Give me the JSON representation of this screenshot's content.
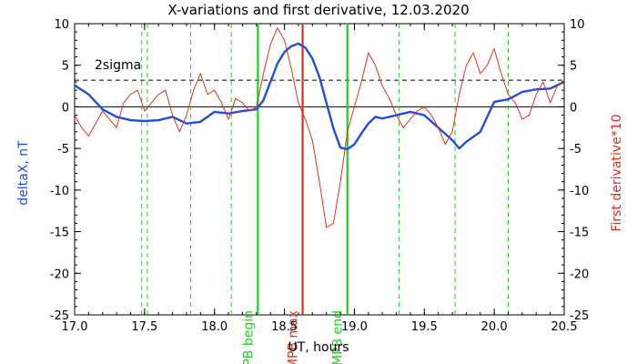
{
  "chart_data": {
    "type": "line",
    "title": "X-variations and first derivative, 12.03.2020",
    "xlabel": "UT, hours",
    "ylabel_left": "deltaX, nT",
    "ylabel_right": "First derivative*10",
    "xlim": [
      17.0,
      20.5
    ],
    "ylim_left": [
      -25,
      10
    ],
    "ylim_right": [
      -25,
      10
    ],
    "x_ticks": [
      "17.0",
      "17.5",
      "18.0",
      "18.5",
      "19.0",
      "19.5",
      "20.0",
      "20.5"
    ],
    "y_ticks_left": [
      "10",
      "5",
      "0",
      "-5",
      "-10",
      "-15",
      "-20",
      "-25"
    ],
    "y_ticks_right": [
      "10",
      "5",
      "0",
      "-5",
      "-10",
      "-15",
      "-20",
      "-25"
    ],
    "colors": {
      "deltaX": "#1f4fd8",
      "derivative": "#d8321e",
      "mpb_lines": "#22cc22",
      "mpb_max": "#d8321e"
    },
    "threshold": {
      "label": "2sigma",
      "value": 3.2,
      "style": "dashed"
    },
    "zero_line": 0,
    "vertical_markers": [
      {
        "label": "MPB begin",
        "x": 18.31,
        "color": "#22cc22",
        "style": "solid"
      },
      {
        "label": "MPB max",
        "x": 18.63,
        "color": "#d8321e",
        "style": "solid"
      },
      {
        "label": "MPB end",
        "x": 18.95,
        "color": "#22cc22",
        "style": "solid"
      }
    ],
    "dashed_verticals_x": [
      17.48,
      17.52,
      17.83,
      18.12,
      19.32,
      19.72,
      20.1
    ],
    "series": [
      {
        "name": "deltaX, nT",
        "axis": "left",
        "x": [
          17.0,
          17.1,
          17.2,
          17.3,
          17.4,
          17.5,
          17.6,
          17.7,
          17.8,
          17.9,
          18.0,
          18.1,
          18.2,
          18.3,
          18.35,
          18.4,
          18.45,
          18.5,
          18.55,
          18.6,
          18.65,
          18.7,
          18.75,
          18.8,
          18.85,
          18.9,
          18.95,
          19.0,
          19.05,
          19.1,
          19.15,
          19.2,
          19.3,
          19.4,
          19.5,
          19.6,
          19.7,
          19.75,
          19.8,
          19.9,
          20.0,
          20.1,
          20.2,
          20.3,
          20.4,
          20.5
        ],
        "values": [
          2.6,
          1.5,
          -0.3,
          -1.2,
          -1.6,
          -1.7,
          -1.6,
          -1.2,
          -2.0,
          -1.8,
          -0.6,
          -0.8,
          -0.5,
          -0.3,
          0.8,
          3.0,
          5.2,
          6.6,
          7.3,
          7.6,
          7.1,
          5.8,
          3.6,
          0.5,
          -2.6,
          -4.9,
          -5.1,
          -4.5,
          -3.2,
          -2.0,
          -1.2,
          -1.4,
          -1.0,
          -0.6,
          -1.0,
          -2.5,
          -4.0,
          -5.0,
          -4.2,
          -3.0,
          0.6,
          0.9,
          1.8,
          2.1,
          2.2,
          3.0
        ]
      },
      {
        "name": "First derivative*10",
        "axis": "right",
        "x": [
          17.0,
          17.05,
          17.1,
          17.15,
          17.2,
          17.25,
          17.3,
          17.35,
          17.4,
          17.45,
          17.5,
          17.55,
          17.6,
          17.65,
          17.7,
          17.75,
          17.8,
          17.85,
          17.9,
          17.95,
          18.0,
          18.05,
          18.1,
          18.15,
          18.2,
          18.25,
          18.3,
          18.35,
          18.4,
          18.45,
          18.5,
          18.55,
          18.6,
          18.65,
          18.7,
          18.75,
          18.8,
          18.85,
          18.9,
          18.95,
          19.0,
          19.05,
          19.1,
          19.15,
          19.2,
          19.25,
          19.3,
          19.35,
          19.4,
          19.45,
          19.5,
          19.55,
          19.6,
          19.65,
          19.7,
          19.75,
          19.8,
          19.85,
          19.9,
          19.95,
          20.0,
          20.05,
          20.1,
          20.15,
          20.2,
          20.25,
          20.3,
          20.35,
          20.4,
          20.45,
          20.5
        ],
        "values": [
          -1.0,
          -2.5,
          -3.5,
          -2.0,
          -0.5,
          -1.5,
          -2.5,
          0.5,
          1.5,
          2.0,
          -0.5,
          0.5,
          1.5,
          2.0,
          -1.0,
          -3.0,
          -1.0,
          2.0,
          4.0,
          1.5,
          2.0,
          0.5,
          -1.5,
          1.0,
          0.5,
          -0.5,
          0.0,
          4.0,
          7.5,
          9.5,
          8.0,
          4.5,
          0.5,
          -1.5,
          -4.0,
          -9.0,
          -14.5,
          -14.0,
          -9.0,
          -3.0,
          0.0,
          3.0,
          6.5,
          5.0,
          2.5,
          1.0,
          -1.0,
          -2.5,
          -1.5,
          -0.5,
          0.0,
          -1.0,
          -2.5,
          -4.5,
          -3.0,
          1.5,
          5.0,
          6.5,
          4.0,
          5.0,
          7.0,
          4.0,
          1.5,
          0.5,
          -1.5,
          -1.0,
          1.5,
          3.0,
          0.5,
          2.5,
          3.0
        ]
      }
    ]
  }
}
